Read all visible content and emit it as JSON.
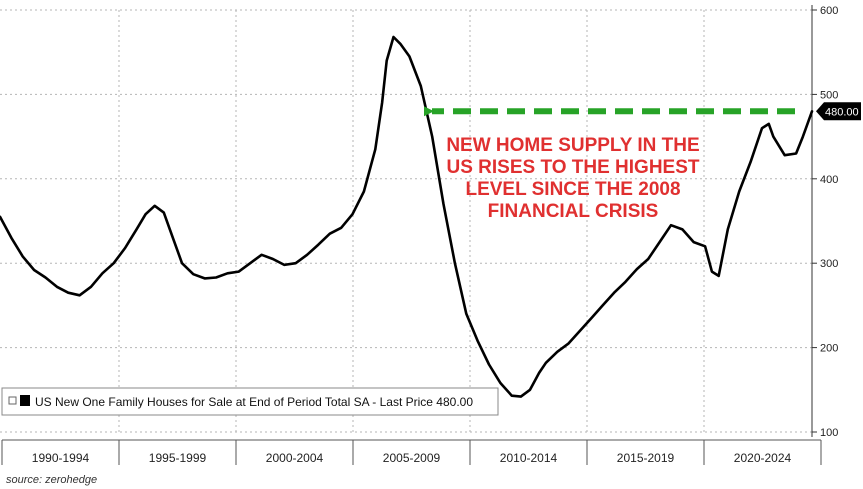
{
  "chart_data": {
    "type": "line",
    "title": "",
    "xlabel": "",
    "ylabel": "",
    "x_range": [
      1989.0,
      2024.7
    ],
    "ylim": [
      100,
      600
    ],
    "yticks": [
      100,
      200,
      300,
      400,
      500,
      600
    ],
    "grid": true,
    "categories": [
      "1990-1994",
      "1995-1999",
      "2000-2004",
      "2005-2009",
      "2010-2014",
      "2015-2019",
      "2020-2024"
    ],
    "series": [
      {
        "name": "US New One Family Houses for Sale at End of Period Total SA",
        "color": "#000000",
        "x": [
          1989.0,
          1989.5,
          1990.0,
          1990.5,
          1991.0,
          1991.5,
          1992.0,
          1992.5,
          1993.0,
          1993.5,
          1994.0,
          1994.5,
          1995.0,
          1995.4,
          1995.8,
          1996.2,
          1996.6,
          1997.0,
          1997.5,
          1998.0,
          1998.5,
          1999.0,
          1999.5,
          2000.0,
          2000.5,
          2001.0,
          2001.5,
          2002.0,
          2002.5,
          2003.0,
          2003.5,
          2004.0,
          2004.5,
          2005.0,
          2005.5,
          2005.8,
          2006.0,
          2006.3,
          2006.6,
          2007.0,
          2007.5,
          2008.0,
          2008.5,
          2009.0,
          2009.5,
          2010.0,
          2010.5,
          2011.0,
          2011.5,
          2011.9,
          2012.3,
          2012.7,
          2013.0,
          2013.5,
          2014.0,
          2014.5,
          2015.0,
          2015.5,
          2016.0,
          2016.5,
          2017.0,
          2017.5,
          2018.0,
          2018.5,
          2019.0,
          2019.5,
          2020.0,
          2020.3,
          2020.6,
          2021.0,
          2021.5,
          2022.0,
          2022.5,
          2022.8,
          2023.0,
          2023.5,
          2024.0,
          2024.3,
          2024.7
        ],
        "values": [
          355,
          330,
          308,
          292,
          283,
          272,
          265,
          262,
          272,
          288,
          300,
          318,
          340,
          358,
          368,
          360,
          330,
          300,
          287,
          282,
          283,
          288,
          290,
          300,
          310,
          305,
          298,
          300,
          310,
          322,
          335,
          342,
          358,
          385,
          435,
          490,
          540,
          568,
          560,
          545,
          510,
          450,
          370,
          300,
          240,
          208,
          180,
          158,
          143,
          142,
          150,
          170,
          182,
          195,
          205,
          220,
          235,
          250,
          265,
          278,
          293,
          305,
          325,
          345,
          340,
          325,
          320,
          290,
          285,
          340,
          385,
          420,
          460,
          465,
          450,
          428,
          430,
          450,
          480
        ]
      }
    ],
    "annotation": {
      "lines": [
        "NEW HOME SUPPLY IN THE",
        "US RISES TO THE HIGHEST",
        "LEVEL SINCE THE 2008",
        "FINANCIAL CRISIS"
      ],
      "color": "#e03030"
    },
    "arrow": {
      "value": 480,
      "color": "#27a327"
    },
    "last_price_label": "480.00",
    "legend": {
      "text": "US New One Family Houses for Sale at End of Period Total SA - Last Price 480.00",
      "position": "bottom-left"
    }
  },
  "source": "source: zerohedge"
}
